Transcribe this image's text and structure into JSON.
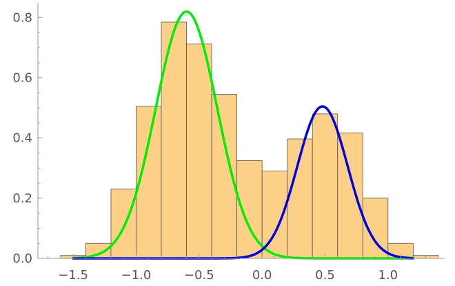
{
  "chart_data": {
    "type": "bar",
    "title": "",
    "xlabel": "",
    "ylabel": "",
    "xlim": [
      -1.78,
      1.45
    ],
    "ylim": [
      0,
      0.84
    ],
    "grid": false,
    "legend": "none",
    "bin_edges": [
      -1.8,
      -1.6,
      -1.4,
      -1.2,
      -1.0,
      -0.8,
      -0.6,
      -0.4,
      -0.2,
      0.0,
      0.2,
      0.4,
      0.6,
      0.8,
      1.0,
      1.2,
      1.4
    ],
    "values": [
      0.0,
      0.01,
      0.05,
      0.23,
      0.505,
      0.785,
      0.712,
      0.545,
      0.325,
      0.29,
      0.397,
      0.48,
      0.417,
      0.2,
      0.05,
      0.01
    ],
    "bar_color": "#fdd088",
    "x_ticks": [
      -1.5,
      -1.0,
      -0.5,
      0.0,
      0.5,
      1.0
    ],
    "x_tick_labels": [
      "−1.5",
      "−1.0",
      "−0.5",
      "0.0",
      "0.5",
      "1.0"
    ],
    "y_ticks": [
      0.0,
      0.2,
      0.4,
      0.6,
      0.8
    ],
    "y_tick_labels": [
      "0.0",
      "0.2",
      "0.4",
      "0.6",
      "0.8"
    ],
    "curves": [
      {
        "color": "#00ee00",
        "mean": -0.6,
        "sd": 0.245,
        "peak": 0.82,
        "x_range": [
          -1.5,
          1.2
        ]
      },
      {
        "color": "#0000dd",
        "mean": 0.48,
        "sd": 0.2,
        "peak": 0.505,
        "x_range": [
          -1.5,
          1.2
        ]
      }
    ]
  }
}
